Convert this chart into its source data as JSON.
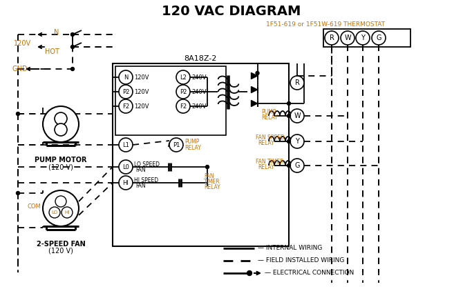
{
  "title": "120 VAC DIAGRAM",
  "background_color": "#ffffff",
  "line_color": "#000000",
  "orange_color": "#c87000",
  "thermostat_label": "1F51-619 or 1F51W-619 THERMOSTAT",
  "box8a_label": "8A18Z-2",
  "terminal_labels": [
    "R",
    "W",
    "Y",
    "G"
  ],
  "pump_motor_label": [
    "PUMP MOTOR",
    "(120 V)"
  ],
  "fan_label": [
    "2-SPEED FAN",
    "(120 V)"
  ],
  "legend": [
    {
      "label": "INTERNAL WIRING",
      "style": "solid"
    },
    {
      "label": "FIELD INSTALLED WIRING",
      "style": "dashed"
    },
    {
      "label": "ELECTRICAL CONNECTION",
      "style": "dot_arrow"
    }
  ]
}
